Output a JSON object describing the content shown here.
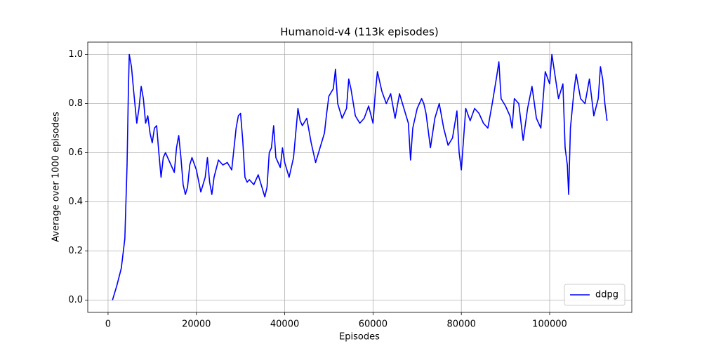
{
  "chart_data": {
    "type": "line",
    "title": "Humanoid-v4 (113k episodes)",
    "x_label": "Episodes",
    "y_label": "Average over 1000 episodes",
    "x": [
      1000,
      2000,
      3000,
      3800,
      4300,
      4600,
      4800,
      5300,
      5800,
      6500,
      7000,
      7500,
      8000,
      8500,
      9000,
      9500,
      10000,
      10500,
      11000,
      11500,
      12000,
      12500,
      13000,
      14000,
      15000,
      15500,
      16000,
      16500,
      17000,
      17500,
      18000,
      18500,
      19000,
      20000,
      21000,
      22000,
      22500,
      23000,
      23500,
      24000,
      25000,
      26000,
      27000,
      28000,
      29000,
      29500,
      30000,
      30500,
      31000,
      31500,
      32000,
      33000,
      34000,
      35000,
      35500,
      36000,
      36500,
      37000,
      37500,
      38000,
      39000,
      39500,
      40000,
      41000,
      42000,
      42500,
      43000,
      43500,
      44000,
      45000,
      46000,
      47000,
      48000,
      49000,
      49500,
      50000,
      51000,
      51500,
      52000,
      53000,
      54000,
      54500,
      55000,
      56000,
      57000,
      58000,
      59000,
      60000,
      60500,
      61000,
      62000,
      63000,
      64000,
      65000,
      66000,
      67000,
      68000,
      68500,
      69000,
      70000,
      71000,
      71500,
      72000,
      73000,
      74000,
      75000,
      76000,
      77000,
      78000,
      79000,
      79500,
      80000,
      81000,
      82000,
      83000,
      84000,
      85000,
      86000,
      87000,
      88000,
      88500,
      89000,
      90000,
      91000,
      91500,
      92000,
      93000,
      94000,
      95000,
      96000,
      97000,
      98000,
      99000,
      100000,
      100500,
      101000,
      102000,
      103000,
      103500,
      104000,
      104300,
      104700,
      105500,
      106000,
      107000,
      108000,
      109000,
      110000,
      111000,
      111500,
      112000,
      112500,
      113000
    ],
    "series": [
      {
        "name": "ddpg",
        "color": "#0000ff",
        "values": [
          0.0,
          0.06,
          0.13,
          0.25,
          0.55,
          0.85,
          1.0,
          0.95,
          0.85,
          0.72,
          0.78,
          0.87,
          0.82,
          0.72,
          0.75,
          0.68,
          0.64,
          0.7,
          0.71,
          0.6,
          0.5,
          0.58,
          0.6,
          0.56,
          0.52,
          0.62,
          0.67,
          0.58,
          0.47,
          0.43,
          0.46,
          0.55,
          0.58,
          0.53,
          0.44,
          0.5,
          0.58,
          0.48,
          0.43,
          0.5,
          0.57,
          0.55,
          0.56,
          0.53,
          0.7,
          0.75,
          0.76,
          0.65,
          0.5,
          0.48,
          0.49,
          0.47,
          0.51,
          0.45,
          0.42,
          0.46,
          0.6,
          0.62,
          0.71,
          0.58,
          0.54,
          0.62,
          0.56,
          0.5,
          0.58,
          0.68,
          0.78,
          0.73,
          0.71,
          0.74,
          0.64,
          0.56,
          0.62,
          0.68,
          0.76,
          0.83,
          0.86,
          0.94,
          0.8,
          0.74,
          0.78,
          0.9,
          0.86,
          0.75,
          0.72,
          0.74,
          0.79,
          0.72,
          0.84,
          0.93,
          0.85,
          0.8,
          0.84,
          0.74,
          0.84,
          0.78,
          0.72,
          0.57,
          0.7,
          0.78,
          0.82,
          0.8,
          0.76,
          0.62,
          0.74,
          0.8,
          0.7,
          0.63,
          0.66,
          0.77,
          0.6,
          0.53,
          0.78,
          0.73,
          0.78,
          0.76,
          0.72,
          0.7,
          0.8,
          0.91,
          0.97,
          0.82,
          0.79,
          0.75,
          0.7,
          0.82,
          0.8,
          0.65,
          0.78,
          0.87,
          0.74,
          0.7,
          0.93,
          0.88,
          1.0,
          0.94,
          0.82,
          0.88,
          0.62,
          0.55,
          0.43,
          0.7,
          0.85,
          0.92,
          0.82,
          0.8,
          0.9,
          0.75,
          0.82,
          0.95,
          0.9,
          0.8,
          0.73
        ]
      }
    ],
    "xlim": [
      -4600,
      118600
    ],
    "ylim": [
      -0.05,
      1.05
    ],
    "xticks": [
      0,
      20000,
      40000,
      60000,
      80000,
      100000
    ],
    "yticks": [
      {
        "value": 0,
        "label": "0.0"
      },
      {
        "value": 0.2,
        "label": "0.2"
      },
      {
        "value": 0.4,
        "label": "0.4"
      },
      {
        "value": 0.6,
        "label": "0.6"
      },
      {
        "value": 0.8,
        "label": "0.8"
      },
      {
        "value": 1,
        "label": "1.0"
      }
    ],
    "grid": true,
    "legend": "lower right"
  }
}
